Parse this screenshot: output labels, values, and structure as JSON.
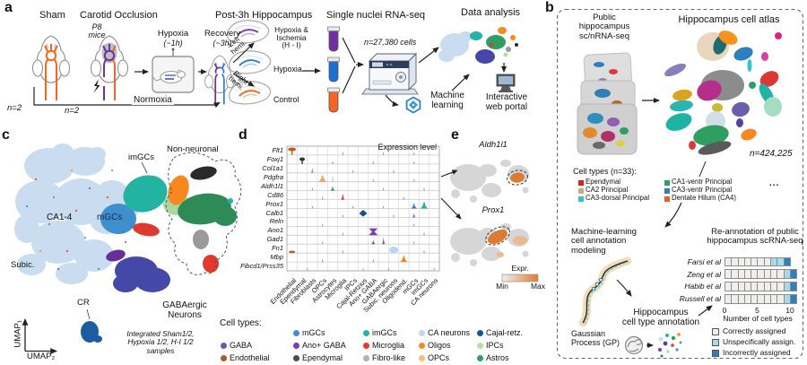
{
  "panel_letters": {
    "a": "a",
    "b": "b",
    "c": "c",
    "d": "d",
    "e": "e"
  },
  "panel_a": {
    "headers": {
      "sham": "Sham",
      "carotid": "Carotid Occlusion",
      "hippocampus": "Post-3h Hippocampus",
      "snrna": "Single nuclei RNA-seq",
      "analysis": "Data analysis"
    },
    "p8_mice": "P8\nmice",
    "n2_sham": "n=2",
    "n2_carotid": "n=2",
    "hypoxia_step": "Hypoxia",
    "hypoxia_time": "(~1h)",
    "recovery_step": "Recovery",
    "recovery_time": "(~3h)",
    "left_hemi": "Left\nhemi.",
    "right_hemi": "Right\nhemi.",
    "cond_hi": "Hypoxia &\nIschemia\n(H - I)",
    "cond_hypoxia": "Hypoxia",
    "cond_control": "Control",
    "normoxia": "Normoxia",
    "n_cells": "n=27,380 cells",
    "machine_learning": "Machine\nlearning",
    "web_portal": "Interactive\nweb portal"
  },
  "panel_b": {
    "public_data": "Public\nhippocampus\nsc/nRNA-seq",
    "atlas_title": "Hippocampus cell atlas",
    "n_total": "n=424,225",
    "cell_types_title": "Cell types (n=33):",
    "atlas_legend_col1": [
      {
        "label": "Ependymal",
        "color": "#e0201b"
      },
      {
        "label": "CA2 Principal",
        "color": "#d3a87e"
      },
      {
        "label": "CA3-dorsal Principal",
        "color": "#35c3c9"
      }
    ],
    "atlas_legend_col2": [
      {
        "label": "CA1-ventr Principal",
        "color": "#2e9e62"
      },
      {
        "label": "CA3-ventr Principal",
        "color": "#2f7fc1"
      },
      {
        "label": "Dentate Hilum (CA4)",
        "color": "#f05a28"
      }
    ],
    "ellipsis": "...",
    "ml_modeling": "Machine-learning\ncell annotation\nmodeling",
    "gp_label": "Gaussian\nProcess (GP)",
    "annotation_label": "Hippocampus\ncell type annotation",
    "reannotation_title": "Re-annotation of public\nhippocampus scRNA-seq"
  },
  "chart_data": {
    "type": "bar",
    "subtype": "stacked-horizontal-discrete",
    "title": "Re-annotation of public hippocampus scRNA-seq",
    "categories": [
      "Farsi et al",
      "Zeng et al",
      "Habib et al",
      "Russell et al"
    ],
    "series": [
      {
        "name": "Correctly assigned",
        "color": "#f0efeb",
        "values": [
          7,
          9,
          9,
          9
        ]
      },
      {
        "name": "Unspecifically assign.",
        "color": "#a9d8e8",
        "values": [
          2,
          1,
          1,
          1
        ]
      },
      {
        "name": "Incorrectly assigned",
        "color": "#2d7fc0",
        "values": [
          1,
          1,
          1,
          1
        ]
      }
    ],
    "xlabel": "Number of cell types",
    "xticks": [
      "0",
      "5",
      "10"
    ],
    "xlim": [
      0,
      11.5
    ],
    "legend_position": "bottom"
  },
  "panel_c": {
    "labels": {
      "ca14": "CA1-4",
      "subic": "Subic.",
      "mgcs": "mGCs",
      "imgcs": "imGCs",
      "non_neuronal": "Non-neuronal",
      "cr": "CR",
      "gaba": "GABAergic\nNeurons",
      "samples": "Integrated Sham1/2,\nHypoxia 1/2, H-I 1/2\nsamples",
      "umap1": "UMAP₁",
      "umap2": "UMAP₂"
    }
  },
  "panel_d": {
    "title": "Expression level",
    "genes": [
      "Flt1",
      "Foxj1",
      "Col1a1",
      "Pdgfra",
      "Aldh1l1",
      "Cd86",
      "Prox1",
      "Calb1",
      "Reln",
      "Ano1",
      "Gad1",
      "Fn1",
      "Mbp",
      "Fibcd1/Prss35"
    ],
    "cell_types": [
      "Endothelial",
      "Ependymal",
      "Fibroblasts",
      "OPCs",
      "Astrocytes",
      "Microglia",
      "IPCs",
      "Cajal-Retzius",
      "Ano+ GABA",
      "GABAergic",
      "Subic. neurons",
      "Oligodend.",
      "mGCs",
      "imGCs",
      "CA neurons"
    ]
  },
  "panel_e": {
    "gene_top": "Aldh1l1",
    "gene_bottom": "Prox1",
    "expr_label": "Expr.",
    "min": "Min",
    "max": "Max"
  },
  "cell_types_legend": {
    "title": "Cell types:",
    "rows": [
      [
        {
          "label": "mGCs",
          "color": "#4191cd"
        },
        {
          "label": "imGCs",
          "color": "#26b3a7"
        },
        {
          "label": "CA neurons",
          "color": "#c4d8ee"
        },
        {
          "label": "Cajal-retz.",
          "color": "#16558f"
        }
      ],
      [
        {
          "label": "GABA",
          "color": "#5c61b1"
        },
        {
          "label": "Ano+ GABA",
          "color": "#7d3caf"
        },
        {
          "label": "Microglia",
          "color": "#e8382d"
        },
        {
          "label": "Oligos",
          "color": "#f68b1f"
        },
        {
          "label": "IPCs",
          "color": "#b2e0a2"
        }
      ],
      [
        {
          "label": "Endothelial",
          "color": "#b05a28"
        },
        {
          "label": "Ependymal",
          "color": "#4d4d4d"
        },
        {
          "label": "Fibro-like",
          "color": "#b3b3b3"
        },
        {
          "label": "OPCs",
          "color": "#f7bc80"
        },
        {
          "label": "Astros",
          "color": "#2f9e68"
        }
      ]
    ]
  }
}
